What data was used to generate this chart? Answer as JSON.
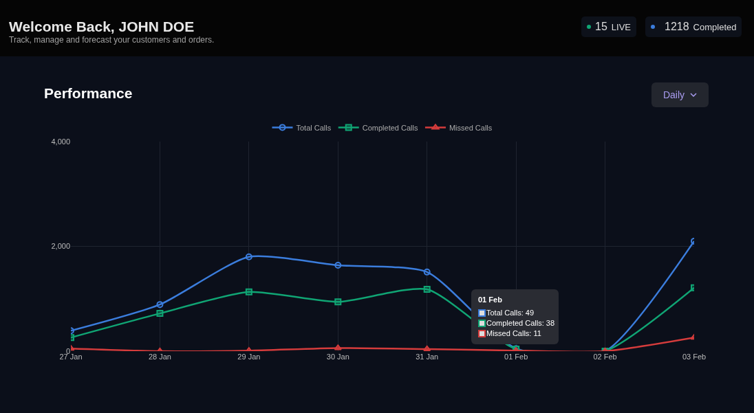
{
  "chart_data": {
    "type": "line",
    "title": "Performance",
    "subtitle": "Track, manage and forecast your customers and orders.",
    "annotations": [
      "Welcome Back, JOHN DOE",
      "15",
      "LIVE",
      "1218",
      "Completed",
      "Daily",
      "01 Feb",
      "Total Calls: 49",
      "Completed Calls: 38",
      "Missed Calls: 11"
    ],
    "categories": [
      "27 Jan",
      "28 Jan",
      "29 Jan",
      "30 Jan",
      "31 Jan",
      "01 Feb",
      "02 Feb",
      "03 Feb"
    ],
    "series": [
      {
        "name": "Total Calls",
        "color": "#3b7ddd",
        "marker": "circle",
        "values": [
          390,
          890,
          1800,
          1640,
          1510,
          49,
          0,
          2100
        ]
      },
      {
        "name": "Completed Calls",
        "color": "#10a574",
        "marker": "square",
        "values": [
          260,
          720,
          1130,
          940,
          1180,
          38,
          0,
          1210
        ]
      },
      {
        "name": "Missed Calls",
        "color": "#d63c3c",
        "marker": "triangle",
        "values": [
          50,
          0,
          10,
          60,
          40,
          11,
          0,
          260
        ]
      }
    ],
    "ylim": [
      0,
      4000
    ],
    "yticks": [
      0,
      {
        "value": 2000,
        "label": "2,000"
      },
      {
        "value": 4000,
        "label": "4,000"
      }
    ],
    "grid": true,
    "legend": "top",
    "line_style": "solid"
  }
}
